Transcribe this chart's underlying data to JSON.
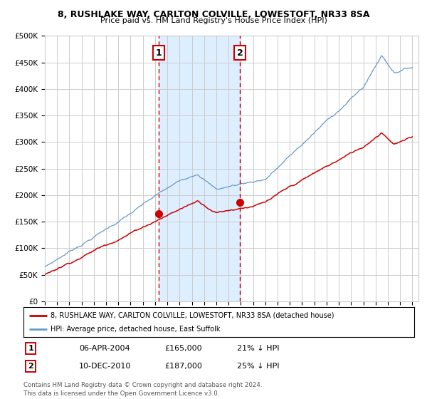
{
  "title1": "8, RUSHLAKE WAY, CARLTON COLVILLE, LOWESTOFT, NR33 8SA",
  "title2": "Price paid vs. HM Land Registry's House Price Index (HPI)",
  "legend_label_red": "8, RUSHLAKE WAY, CARLTON COLVILLE, LOWESTOFT, NR33 8SA (detached house)",
  "legend_label_blue": "HPI: Average price, detached house, East Suffolk",
  "annotation1_label": "1",
  "annotation1_date": "06-APR-2004",
  "annotation1_price": "£165,000",
  "annotation1_hpi": "21% ↓ HPI",
  "annotation2_label": "2",
  "annotation2_date": "10-DEC-2010",
  "annotation2_price": "£187,000",
  "annotation2_hpi": "25% ↓ HPI",
  "footnote": "Contains HM Land Registry data © Crown copyright and database right 2024.\nThis data is licensed under the Open Government Licence v3.0.",
  "red_color": "#cc0000",
  "blue_color": "#6699cc",
  "shaded_color": "#ddeeff",
  "dashed_color": "#cc0000",
  "grid_color": "#cccccc",
  "bg_color": "#ffffff",
  "ylim": [
    0,
    500000
  ],
  "yticks": [
    0,
    50000,
    100000,
    150000,
    200000,
    250000,
    300000,
    350000,
    400000,
    450000,
    500000
  ],
  "ytick_labels": [
    "£0",
    "£50K",
    "£100K",
    "£150K",
    "£200K",
    "£250K",
    "£300K",
    "£350K",
    "£400K",
    "£450K",
    "£500K"
  ],
  "sale1_year": 2004.29,
  "sale1_price": 165000,
  "sale2_year": 2010.92,
  "sale2_price": 187000,
  "xmin": 1995,
  "xmax": 2025.5
}
